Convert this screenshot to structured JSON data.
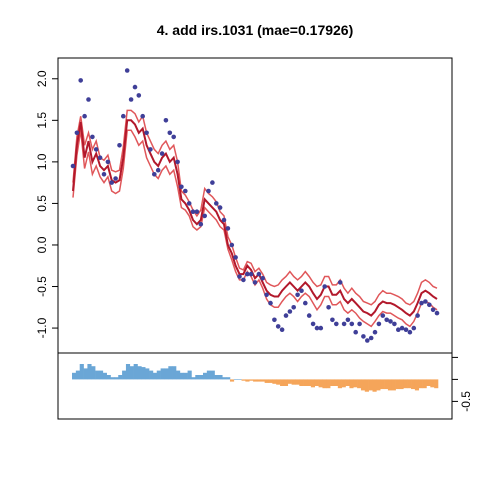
{
  "chart_data": [
    {
      "type": "line",
      "title": "4. add irs.1031 (mae=0.17926)",
      "xlabel": "",
      "ylabel": "",
      "xlim": [
        0,
        95
      ],
      "ylim": [
        -1.3,
        2.25
      ],
      "yticks": [
        -1.0,
        -0.5,
        0.0,
        0.5,
        1.0,
        1.5,
        2.0
      ],
      "ytick_labels": [
        "-1.0",
        "-0.5",
        "0.0",
        "0.5",
        "1.0",
        "1.5",
        "2.0"
      ],
      "grid": false,
      "colors": {
        "points": "#3f3f98",
        "fit": "#b2182b",
        "band": "#e0575a"
      },
      "series": [
        {
          "kind": "points",
          "values": [
            0.95,
            1.35,
            1.98,
            1.55,
            1.75,
            1.3,
            1.15,
            1.05,
            0.85,
            1.0,
            0.75,
            0.8,
            1.2,
            1.55,
            2.1,
            1.75,
            1.9,
            1.8,
            1.55,
            1.35,
            1.15,
            0.85,
            0.9,
            1.1,
            1.5,
            1.35,
            1.3,
            1.0,
            0.7,
            0.65,
            0.5,
            0.4,
            0.4,
            0.25,
            0.35,
            0.65,
            0.75,
            0.5,
            0.45,
            0.3,
            0.2,
            0.0,
            -0.15,
            -0.38,
            -0.42,
            -0.35,
            -0.35,
            -0.45,
            -0.35,
            -0.4,
            -0.6,
            -0.7,
            -0.9,
            -0.98,
            -1.02,
            -0.85,
            -0.8,
            -0.75,
            -0.6,
            -0.55,
            -0.7,
            -0.85,
            -0.95,
            -1.0,
            -1.0,
            -0.5,
            -0.75,
            -0.9,
            -0.95,
            -0.45,
            -0.95,
            -0.9,
            -0.95,
            -1.05,
            -0.95,
            -1.1,
            -1.15,
            -1.12,
            -1.05,
            -0.95,
            -0.85,
            -0.9,
            -0.92,
            -0.95,
            -1.02,
            -1.0,
            -1.02,
            -1.05,
            -1.0,
            -0.85,
            -0.7,
            -0.68,
            -0.72,
            -0.78,
            -0.82
          ]
        },
        {
          "kind": "fit",
          "values": [
            0.65,
            1.2,
            1.48,
            1.05,
            1.25,
            1.0,
            1.1,
            0.95,
            0.9,
            0.95,
            0.78,
            0.75,
            0.78,
            1.05,
            1.5,
            1.5,
            1.45,
            1.35,
            1.4,
            1.2,
            1.1,
            1.0,
            0.95,
            1.05,
            1.1,
            1.0,
            1.05,
            0.85,
            0.55,
            0.5,
            0.42,
            0.3,
            0.25,
            0.3,
            0.55,
            0.5,
            0.45,
            0.4,
            0.3,
            0.25,
            0.0,
            -0.1,
            -0.25,
            -0.35,
            -0.35,
            -0.25,
            -0.3,
            -0.4,
            -0.35,
            -0.45,
            -0.55,
            -0.6,
            -0.62,
            -0.62,
            -0.55,
            -0.5,
            -0.45,
            -0.5,
            -0.55,
            -0.5,
            -0.45,
            -0.5,
            -0.58,
            -0.65,
            -0.6,
            -0.5,
            -0.5,
            -0.6,
            -0.6,
            -0.55,
            -0.65,
            -0.7,
            -0.65,
            -0.7,
            -0.75,
            -0.8,
            -0.82,
            -0.85,
            -0.8,
            -0.72,
            -0.68,
            -0.7,
            -0.7,
            -0.72,
            -0.75,
            -0.78,
            -0.82,
            -0.85,
            -0.8,
            -0.7,
            -0.58,
            -0.55,
            -0.58,
            -0.62,
            -0.65
          ]
        },
        {
          "kind": "band_upper",
          "values": [
            0.75,
            1.3,
            1.55,
            1.2,
            1.35,
            1.15,
            1.25,
            1.05,
            1.02,
            1.08,
            0.9,
            0.88,
            0.9,
            1.18,
            1.62,
            1.62,
            1.58,
            1.48,
            1.55,
            1.35,
            1.25,
            1.15,
            1.1,
            1.2,
            1.25,
            1.15,
            1.2,
            1.0,
            0.65,
            0.6,
            0.52,
            0.42,
            0.35,
            0.42,
            0.68,
            0.62,
            0.58,
            0.52,
            0.4,
            0.35,
            0.1,
            0.0,
            -0.15,
            -0.28,
            -0.3,
            -0.2,
            -0.22,
            -0.32,
            -0.28,
            -0.35,
            -0.45,
            -0.48,
            -0.5,
            -0.48,
            -0.42,
            -0.38,
            -0.32,
            -0.38,
            -0.42,
            -0.38,
            -0.32,
            -0.38,
            -0.45,
            -0.5,
            -0.48,
            -0.38,
            -0.38,
            -0.48,
            -0.48,
            -0.42,
            -0.52,
            -0.58,
            -0.52,
            -0.58,
            -0.62,
            -0.68,
            -0.7,
            -0.72,
            -0.68,
            -0.6,
            -0.55,
            -0.58,
            -0.58,
            -0.6,
            -0.62,
            -0.65,
            -0.7,
            -0.72,
            -0.68,
            -0.58,
            -0.45,
            -0.42,
            -0.45,
            -0.5,
            -0.52
          ]
        },
        {
          "kind": "band_lower",
          "values": [
            0.57,
            1.08,
            1.38,
            0.92,
            1.12,
            0.85,
            0.95,
            0.82,
            0.75,
            0.82,
            0.65,
            0.62,
            0.65,
            0.92,
            1.38,
            1.38,
            1.3,
            1.2,
            1.25,
            1.05,
            0.95,
            0.85,
            0.8,
            0.9,
            0.95,
            0.85,
            0.9,
            0.7,
            0.45,
            0.42,
            0.35,
            0.22,
            0.18,
            0.22,
            0.45,
            0.4,
            0.35,
            0.3,
            0.22,
            0.18,
            -0.05,
            -0.18,
            -0.32,
            -0.42,
            -0.42,
            -0.32,
            -0.38,
            -0.48,
            -0.42,
            -0.52,
            -0.65,
            -0.72,
            -0.75,
            -0.75,
            -0.68,
            -0.62,
            -0.58,
            -0.62,
            -0.68,
            -0.62,
            -0.58,
            -0.62,
            -0.7,
            -0.78,
            -0.72,
            -0.62,
            -0.62,
            -0.72,
            -0.72,
            -0.68,
            -0.78,
            -0.82,
            -0.78,
            -0.82,
            -0.88,
            -0.92,
            -0.95,
            -0.98,
            -0.92,
            -0.85,
            -0.8,
            -0.82,
            -0.82,
            -0.85,
            -0.88,
            -0.9,
            -0.95,
            -0.98,
            -0.92,
            -0.82,
            -0.7,
            -0.68,
            -0.7,
            -0.75,
            -0.78
          ]
        }
      ]
    },
    {
      "type": "bar",
      "title": "",
      "xlabel": "",
      "ylabel": "",
      "ylim": [
        -0.9,
        0.6
      ],
      "yticks": [
        0.0,
        -0.5
      ],
      "ytick_labels": [
        "",
        "-0.5"
      ],
      "grid": false,
      "colors": {
        "positive": "#6aa6d6",
        "negative": "#f5a55a"
      },
      "values": [
        0.15,
        0.2,
        0.35,
        0.25,
        0.35,
        0.3,
        0.2,
        0.2,
        0.15,
        0.1,
        0.05,
        0.05,
        0.1,
        0.2,
        0.35,
        0.3,
        0.35,
        0.3,
        0.28,
        0.25,
        0.2,
        0.15,
        0.2,
        0.25,
        0.25,
        0.3,
        0.3,
        0.2,
        0.15,
        0.15,
        0.2,
        0.05,
        0.1,
        0.1,
        0.15,
        0.2,
        0.2,
        0.1,
        0.1,
        0.05,
        0.05,
        -0.05,
        0.0,
        0.0,
        -0.03,
        -0.05,
        -0.03,
        -0.05,
        -0.05,
        -0.05,
        -0.08,
        -0.08,
        -0.1,
        -0.12,
        -0.15,
        -0.15,
        -0.1,
        -0.12,
        -0.12,
        -0.15,
        -0.15,
        -0.15,
        -0.18,
        -0.15,
        -0.18,
        -0.2,
        -0.2,
        -0.15,
        -0.15,
        -0.2,
        -0.18,
        -0.15,
        -0.2,
        -0.18,
        -0.2,
        -0.25,
        -0.28,
        -0.25,
        -0.28,
        -0.25,
        -0.22,
        -0.22,
        -0.25,
        -0.25,
        -0.22,
        -0.22,
        -0.2,
        -0.2,
        -0.22,
        -0.25,
        -0.2,
        -0.2,
        -0.15,
        -0.18,
        -0.2
      ]
    }
  ]
}
